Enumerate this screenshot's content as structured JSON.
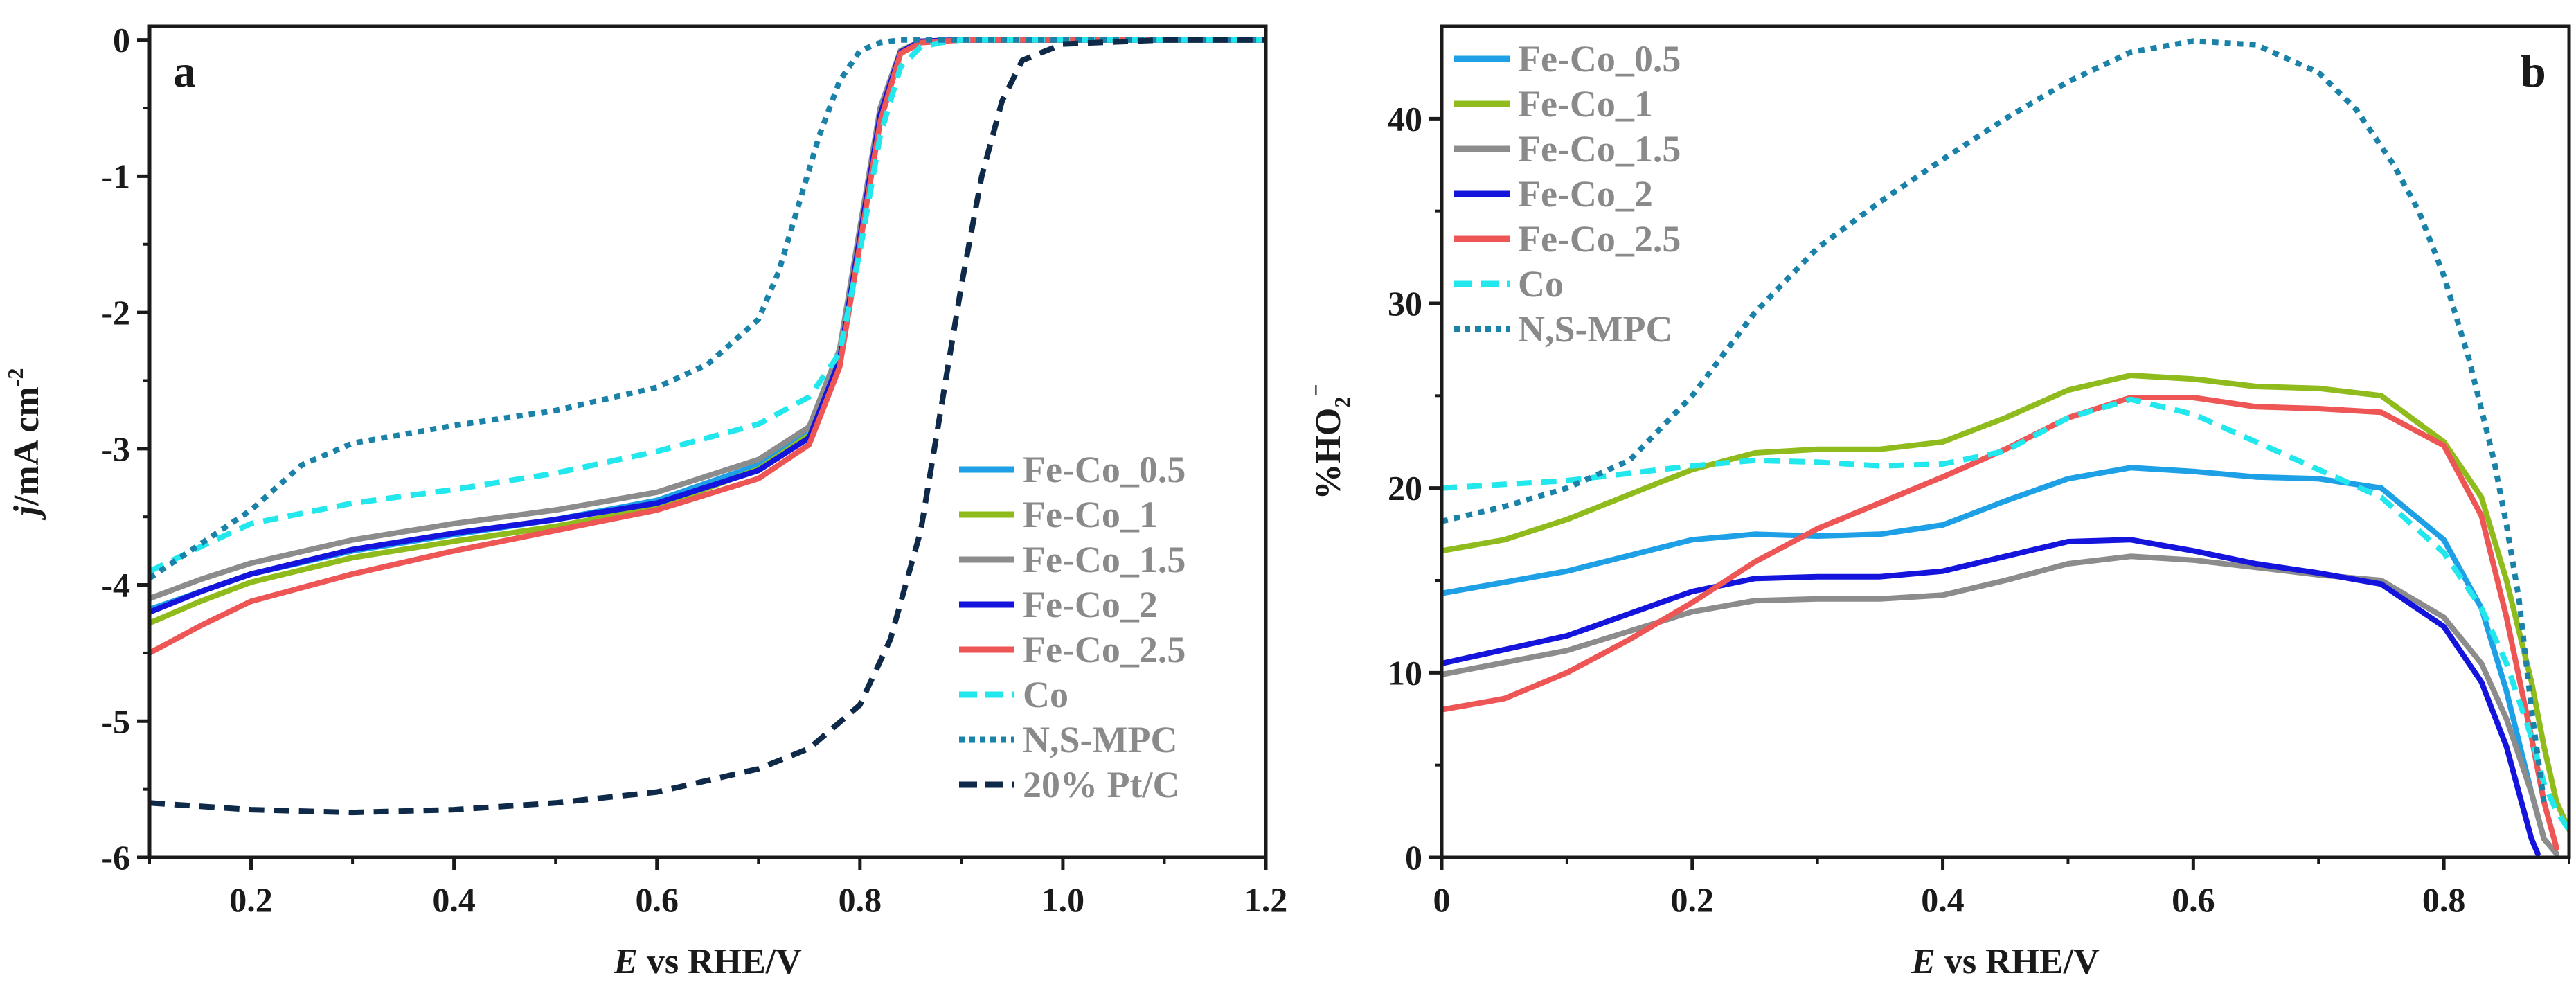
{
  "chart_data": [
    {
      "type": "line",
      "panel_label": "a",
      "xlabel_italic": "E",
      "xlabel_rest": " vs RHE/V",
      "ylabel_italic": "j",
      "ylabel_rest": "/mA cm",
      "ylabel_sup": "-2",
      "xlim": [
        0.1,
        1.2
      ],
      "ylim": [
        -6,
        0.1
      ],
      "xticks": [
        0.2,
        0.4,
        0.6,
        0.8,
        1.0,
        1.2
      ],
      "xtick_labels": [
        "0.2",
        "0.4",
        "0.6",
        "0.8",
        "1.0",
        "1.2"
      ],
      "yticks": [
        0,
        -1,
        -2,
        -3,
        -4,
        -5,
        -6
      ],
      "ytick_labels": [
        "0",
        "-1",
        "-2",
        "-3",
        "-4",
        "-5",
        "-6"
      ],
      "legend_position": "bottom-right",
      "series": [
        {
          "name": "Fe-Co_0.5",
          "color": "#1ea0e6",
          "dash": "solid",
          "x": [
            0.1,
            0.15,
            0.2,
            0.3,
            0.4,
            0.5,
            0.6,
            0.7,
            0.75,
            0.78,
            0.8,
            0.82,
            0.84,
            0.86,
            0.9,
            1.0,
            1.1,
            1.2
          ],
          "y": [
            -4.18,
            -4.05,
            -3.92,
            -3.75,
            -3.63,
            -3.52,
            -3.38,
            -3.12,
            -2.88,
            -2.3,
            -1.4,
            -0.5,
            -0.08,
            -0.01,
            0,
            0,
            0,
            0
          ]
        },
        {
          "name": "Fe-Co_1",
          "color": "#8fbc1c",
          "dash": "solid",
          "x": [
            0.1,
            0.15,
            0.2,
            0.3,
            0.4,
            0.5,
            0.6,
            0.7,
            0.75,
            0.78,
            0.8,
            0.82,
            0.84,
            0.86,
            0.9,
            1.0,
            1.1,
            1.2
          ],
          "y": [
            -4.28,
            -4.12,
            -3.98,
            -3.8,
            -3.68,
            -3.57,
            -3.43,
            -3.15,
            -2.9,
            -2.32,
            -1.42,
            -0.52,
            -0.08,
            -0.01,
            0,
            0,
            0,
            0
          ]
        },
        {
          "name": "Fe-Co_1.5",
          "color": "#8c8c8c",
          "dash": "solid",
          "x": [
            0.1,
            0.15,
            0.2,
            0.3,
            0.4,
            0.5,
            0.6,
            0.7,
            0.75,
            0.78,
            0.8,
            0.82,
            0.84,
            0.86,
            0.9,
            1.0,
            1.1,
            1.2
          ],
          "y": [
            -4.1,
            -3.96,
            -3.84,
            -3.67,
            -3.55,
            -3.45,
            -3.32,
            -3.08,
            -2.84,
            -2.27,
            -1.38,
            -0.5,
            -0.08,
            -0.01,
            0,
            0,
            0,
            0
          ]
        },
        {
          "name": "Fe-Co_2",
          "color": "#1414dc",
          "dash": "solid",
          "x": [
            0.1,
            0.15,
            0.2,
            0.3,
            0.4,
            0.5,
            0.6,
            0.7,
            0.75,
            0.78,
            0.8,
            0.82,
            0.84,
            0.86,
            0.9,
            1.0,
            1.1,
            1.2
          ],
          "y": [
            -4.2,
            -4.05,
            -3.92,
            -3.74,
            -3.62,
            -3.52,
            -3.4,
            -3.16,
            -2.92,
            -2.35,
            -1.45,
            -0.55,
            -0.09,
            -0.01,
            0,
            0,
            0,
            0
          ]
        },
        {
          "name": "Fe-Co_2.5",
          "color": "#ee5555",
          "dash": "solid",
          "x": [
            0.1,
            0.15,
            0.2,
            0.3,
            0.4,
            0.5,
            0.6,
            0.7,
            0.75,
            0.78,
            0.8,
            0.82,
            0.84,
            0.86,
            0.9,
            1.0,
            1.1,
            1.2
          ],
          "y": [
            -4.5,
            -4.3,
            -4.12,
            -3.92,
            -3.75,
            -3.6,
            -3.45,
            -3.22,
            -2.97,
            -2.4,
            -1.5,
            -0.6,
            -0.1,
            -0.02,
            0,
            0,
            0,
            0
          ]
        },
        {
          "name": "Co",
          "color": "#22e8ee",
          "dash": "dash",
          "x": [
            0.1,
            0.15,
            0.2,
            0.3,
            0.4,
            0.5,
            0.6,
            0.7,
            0.75,
            0.78,
            0.8,
            0.82,
            0.84,
            0.86,
            0.88,
            0.9,
            1.0,
            1.1,
            1.2
          ],
          "y": [
            -3.9,
            -3.72,
            -3.55,
            -3.4,
            -3.3,
            -3.18,
            -3.02,
            -2.82,
            -2.62,
            -2.3,
            -1.55,
            -0.7,
            -0.2,
            -0.05,
            -0.02,
            0,
            0,
            0,
            0
          ]
        },
        {
          "name": "N,S-MPC",
          "color": "#1a82a8",
          "dash": "dot",
          "x": [
            0.1,
            0.15,
            0.2,
            0.25,
            0.3,
            0.4,
            0.5,
            0.6,
            0.65,
            0.7,
            0.72,
            0.74,
            0.76,
            0.78,
            0.8,
            0.82,
            0.84,
            0.9,
            1.0,
            1.1,
            1.2
          ],
          "y": [
            -3.95,
            -3.7,
            -3.45,
            -3.12,
            -2.96,
            -2.83,
            -2.72,
            -2.55,
            -2.38,
            -2.05,
            -1.7,
            -1.2,
            -0.7,
            -0.3,
            -0.08,
            -0.02,
            0,
            0,
            0,
            0,
            0
          ]
        },
        {
          "name": "20% Pt/C",
          "color": "#0e2a48",
          "dash": "dash",
          "x": [
            0.1,
            0.2,
            0.3,
            0.4,
            0.5,
            0.6,
            0.7,
            0.75,
            0.8,
            0.83,
            0.86,
            0.88,
            0.9,
            0.92,
            0.94,
            0.96,
            1.0,
            1.1,
            1.2
          ],
          "y": [
            -5.6,
            -5.65,
            -5.67,
            -5.65,
            -5.6,
            -5.52,
            -5.35,
            -5.2,
            -4.88,
            -4.4,
            -3.6,
            -2.7,
            -1.8,
            -1.0,
            -0.45,
            -0.15,
            -0.03,
            0,
            0
          ]
        }
      ]
    },
    {
      "type": "line",
      "panel_label": "b",
      "xlabel_italic": "E",
      "xlabel_rest": " vs RHE/V",
      "ylabel_text": "%HO",
      "ylabel_sub": "2",
      "ylabel_sup": "−",
      "xlim": [
        0,
        0.9
      ],
      "ylim": [
        0,
        45
      ],
      "xticks": [
        0,
        0.2,
        0.4,
        0.6,
        0.8
      ],
      "xtick_labels": [
        "0",
        "0.2",
        "0.4",
        "0.6",
        "0.8"
      ],
      "yticks": [
        0,
        10,
        20,
        30,
        40
      ],
      "ytick_labels": [
        "0",
        "10",
        "20",
        "30",
        "40"
      ],
      "legend_position": "top-left",
      "series": [
        {
          "name": "Fe-Co_0.5",
          "color": "#1ea0e6",
          "dash": "solid",
          "x": [
            0,
            0.1,
            0.2,
            0.25,
            0.3,
            0.35,
            0.4,
            0.45,
            0.5,
            0.55,
            0.6,
            0.65,
            0.7,
            0.75,
            0.8,
            0.83,
            0.85,
            0.87,
            0.88,
            0.89
          ],
          "y": [
            14.3,
            15.5,
            17.2,
            17.5,
            17.4,
            17.5,
            18.0,
            19.3,
            20.5,
            21.1,
            20.9,
            20.6,
            20.5,
            20.0,
            17.2,
            13.5,
            9.0,
            3.5,
            1.0,
            0.2
          ]
        },
        {
          "name": "Fe-Co_1",
          "color": "#8fbc1c",
          "dash": "solid",
          "x": [
            0,
            0.05,
            0.1,
            0.2,
            0.25,
            0.3,
            0.35,
            0.4,
            0.45,
            0.5,
            0.55,
            0.6,
            0.65,
            0.7,
            0.75,
            0.8,
            0.83,
            0.85,
            0.87,
            0.88,
            0.89,
            0.9
          ],
          "y": [
            16.6,
            17.2,
            18.3,
            21.0,
            21.9,
            22.1,
            22.1,
            22.5,
            23.8,
            25.3,
            26.1,
            25.9,
            25.5,
            25.4,
            25.0,
            22.5,
            19.5,
            15.0,
            9.5,
            6.0,
            3.0,
            1.5
          ]
        },
        {
          "name": "Fe-Co_1.5",
          "color": "#8c8c8c",
          "dash": "solid",
          "x": [
            0,
            0.1,
            0.2,
            0.25,
            0.3,
            0.35,
            0.4,
            0.45,
            0.5,
            0.55,
            0.6,
            0.65,
            0.7,
            0.75,
            0.8,
            0.83,
            0.85,
            0.87,
            0.88,
            0.89
          ],
          "y": [
            9.9,
            11.2,
            13.3,
            13.9,
            14.0,
            14.0,
            14.2,
            15.0,
            15.9,
            16.3,
            16.1,
            15.7,
            15.3,
            15.0,
            13.0,
            10.5,
            7.5,
            3.5,
            1.0,
            0.2
          ]
        },
        {
          "name": "Fe-Co_2",
          "color": "#1414dc",
          "dash": "solid",
          "x": [
            0,
            0.1,
            0.2,
            0.25,
            0.3,
            0.35,
            0.4,
            0.45,
            0.5,
            0.55,
            0.6,
            0.65,
            0.7,
            0.75,
            0.8,
            0.83,
            0.85,
            0.86,
            0.87,
            0.875
          ],
          "y": [
            10.5,
            12.0,
            14.4,
            15.1,
            15.2,
            15.2,
            15.5,
            16.3,
            17.1,
            17.2,
            16.6,
            15.9,
            15.4,
            14.8,
            12.5,
            9.5,
            6.0,
            3.5,
            1.0,
            0.2
          ]
        },
        {
          "name": "Fe-Co_2.5",
          "color": "#ee5555",
          "dash": "solid",
          "x": [
            0,
            0.05,
            0.1,
            0.15,
            0.2,
            0.25,
            0.3,
            0.35,
            0.4,
            0.45,
            0.5,
            0.55,
            0.6,
            0.65,
            0.7,
            0.75,
            0.8,
            0.83,
            0.85,
            0.87,
            0.88,
            0.89
          ],
          "y": [
            8.0,
            8.6,
            10.0,
            11.8,
            13.8,
            16.0,
            17.8,
            19.2,
            20.6,
            22.1,
            23.8,
            24.9,
            24.9,
            24.4,
            24.3,
            24.1,
            22.3,
            18.5,
            13.0,
            6.5,
            3.0,
            0.5
          ]
        },
        {
          "name": "Co",
          "color": "#22e8ee",
          "dash": "dash",
          "x": [
            0,
            0.1,
            0.2,
            0.25,
            0.3,
            0.35,
            0.4,
            0.45,
            0.5,
            0.55,
            0.6,
            0.65,
            0.7,
            0.75,
            0.8,
            0.83,
            0.85,
            0.87,
            0.88,
            0.89,
            0.9
          ],
          "y": [
            20.0,
            20.4,
            21.2,
            21.5,
            21.4,
            21.2,
            21.3,
            22.0,
            23.8,
            24.8,
            24.0,
            22.5,
            21.0,
            19.5,
            16.5,
            13.5,
            10.5,
            6.5,
            4.0,
            2.5,
            1.5
          ]
        },
        {
          "name": "N,S-MPC",
          "color": "#1a82a8",
          "dash": "dot",
          "x": [
            0,
            0.05,
            0.1,
            0.15,
            0.2,
            0.25,
            0.3,
            0.35,
            0.4,
            0.45,
            0.5,
            0.55,
            0.6,
            0.65,
            0.7,
            0.73,
            0.76,
            0.78,
            0.8,
            0.82,
            0.84,
            0.85,
            0.86,
            0.87,
            0.88
          ],
          "y": [
            18.2,
            19.0,
            20.0,
            21.5,
            25.0,
            29.5,
            33.0,
            35.5,
            37.8,
            40.0,
            42.0,
            43.6,
            44.2,
            44.0,
            42.5,
            40.5,
            37.5,
            35.0,
            31.5,
            27.0,
            21.5,
            18.0,
            14.0,
            8.0,
            3.0
          ]
        }
      ]
    }
  ]
}
